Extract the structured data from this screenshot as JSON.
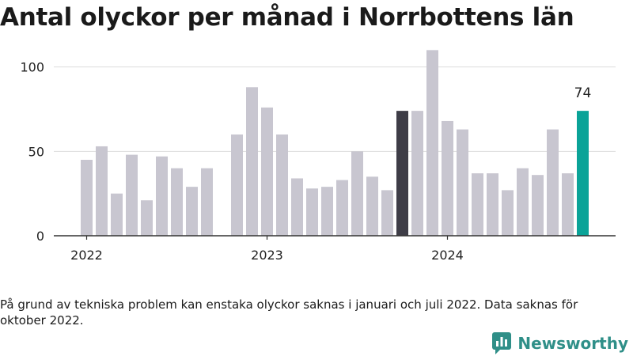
{
  "title": "Antal olyckor per månad i Norrbottens län",
  "footnote": "På grund av tekniska problem kan enstaka olyckor saknas i januari och juli 2022. Data saknas för oktober 2022.",
  "brand": {
    "name": "Newsworthy",
    "icon": "newsworthy-logo-icon"
  },
  "colors": {
    "bar": "#c8c6d0",
    "highlight_dark": "#3e3d47",
    "highlight_latest": "#0aa398",
    "grid": "#dddddd",
    "axis": "#333333"
  },
  "chart_data": {
    "type": "bar",
    "title": "Antal olyckor per månad i Norrbottens län",
    "xlabel": "",
    "ylabel": "",
    "ylim": [
      0,
      120
    ],
    "yticks": [
      0,
      50,
      100
    ],
    "grid": true,
    "x_tick_labels": [
      {
        "label": "2022",
        "month": "2022-01"
      },
      {
        "label": "2023",
        "month": "2023-01"
      },
      {
        "label": "2024",
        "month": "2024-01"
      }
    ],
    "categories": [
      "2022-01",
      "2022-02",
      "2022-03",
      "2022-04",
      "2022-05",
      "2022-06",
      "2022-07",
      "2022-08",
      "2022-09",
      "2022-10",
      "2022-11",
      "2022-12",
      "2023-01",
      "2023-02",
      "2023-03",
      "2023-04",
      "2023-05",
      "2023-06",
      "2023-07",
      "2023-08",
      "2023-09",
      "2023-10",
      "2023-11",
      "2023-12",
      "2024-01",
      "2024-02",
      "2024-03",
      "2024-04",
      "2024-05",
      "2024-06",
      "2024-07",
      "2024-08",
      "2024-09",
      "2024-10"
    ],
    "values": [
      45,
      53,
      25,
      48,
      21,
      47,
      40,
      29,
      40,
      null,
      60,
      88,
      76,
      60,
      34,
      28,
      29,
      33,
      50,
      35,
      27,
      74,
      74,
      110,
      68,
      63,
      37,
      37,
      27,
      40,
      36,
      63,
      37,
      74
    ],
    "highlights": [
      {
        "month": "2023-10",
        "color": "highlight_dark"
      },
      {
        "month": "2024-10",
        "color": "highlight_latest",
        "label": "74"
      }
    ]
  }
}
